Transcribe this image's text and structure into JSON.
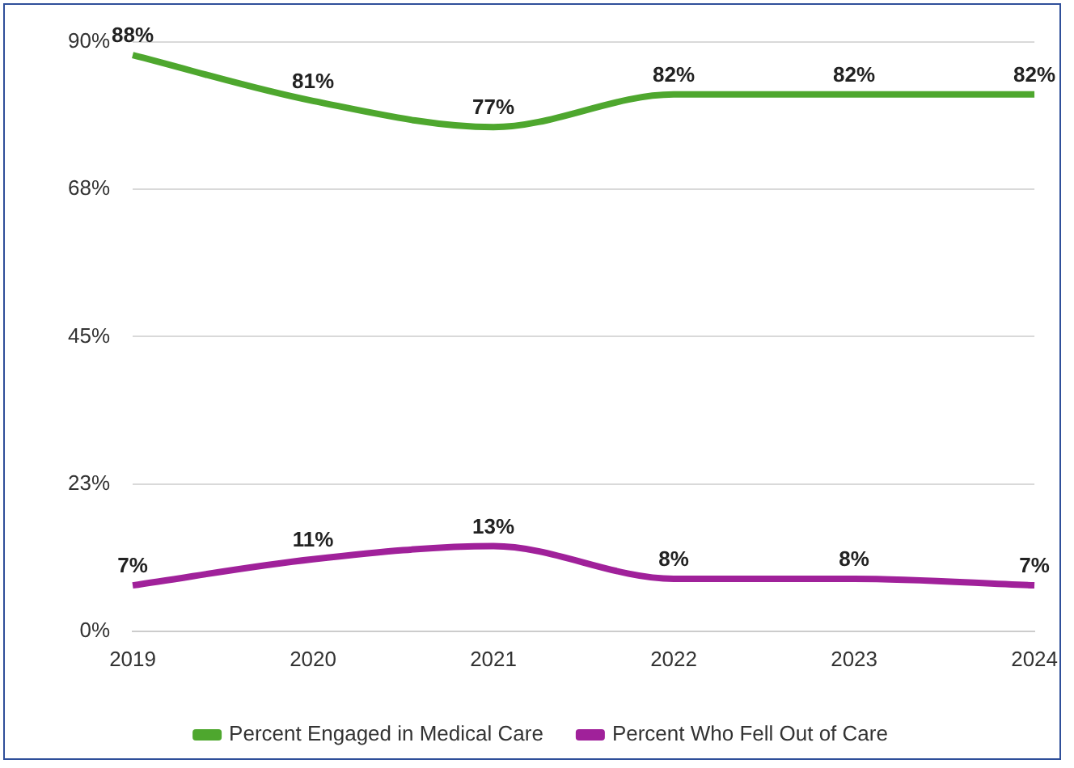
{
  "chart_data": {
    "type": "line",
    "categories": [
      "2019",
      "2020",
      "2021",
      "2022",
      "2023",
      "2024"
    ],
    "series": [
      {
        "name": "Percent Engaged in Medical Care",
        "color": "#4ea72e",
        "values": [
          88,
          81,
          77,
          82,
          82,
          82
        ],
        "value_labels": [
          "88%",
          "81%",
          "77%",
          "82%",
          "82%",
          "82%"
        ]
      },
      {
        "name": "Percent Who Fell Out of Care",
        "color": "#a0219a",
        "values": [
          7,
          11,
          13,
          8,
          8,
          7
        ],
        "value_labels": [
          "7%",
          "11%",
          "13%",
          "8%",
          "8%",
          "7%"
        ]
      }
    ],
    "ylim": [
      0,
      90
    ],
    "yticks": [
      {
        "value": 0,
        "label": "0%"
      },
      {
        "value": 22.5,
        "label": "23%"
      },
      {
        "value": 45,
        "label": "45%"
      },
      {
        "value": 67.5,
        "label": "68%"
      },
      {
        "value": 90,
        "label": "90%"
      }
    ],
    "grid": "y",
    "legend": "bottom",
    "marker": "none",
    "line_style": "solid"
  }
}
